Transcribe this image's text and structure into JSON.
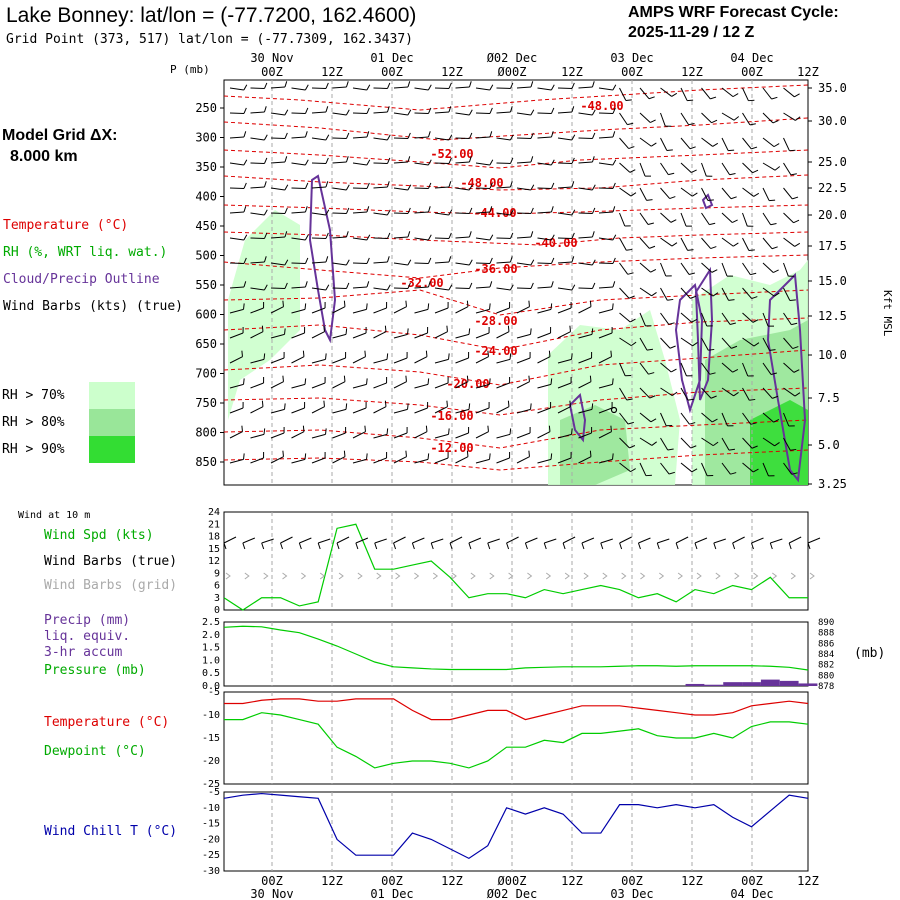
{
  "header": {
    "title": "Lake Bonney:  lat/lon = (-77.7200, 162.4600)",
    "subtitle": "Grid Point (373, 517) lat/lon = (-77.7309, 162.3437)",
    "cycle_line1": "AMPS WRF Forecast Cycle:",
    "cycle_line2": "2025-11-29 / 12  Z"
  },
  "sidebar": {
    "model_grid_label": "Model Grid ΔX:",
    "model_grid_value": "8.000 km",
    "legend_temperature": "Temperature (°C)",
    "legend_rh": "RH (%, WRT liq. wat.)",
    "legend_cloud": "Cloud/Precip Outline",
    "legend_wind": "Wind Barbs (kts) (true)",
    "rh_levels": [
      "RH > 70%",
      "RH > 80%",
      "RH > 90%"
    ],
    "rh_colors": [
      "#ccffcc",
      "#99e699",
      "#33dd33"
    ]
  },
  "colors": {
    "temperature": "#dd0000",
    "dewpoint": "#00cc00",
    "cloud": "#663399",
    "windchill": "#0000aa",
    "grid_barb": "#aaaaaa",
    "precip": "#663399"
  },
  "chart_data": [
    {
      "id": "cross_section",
      "type": "heatmap",
      "axis_title": "P (mb)",
      "right_axis_title": "Kft MSL",
      "pressure_ticks": [
        "250",
        "300",
        "350",
        "400",
        "450",
        "500",
        "550",
        "600",
        "650",
        "700",
        "750",
        "800",
        "850"
      ],
      "height_ticks_kft": [
        "35.0",
        "30.0",
        "25.0",
        "22.5",
        "20.0",
        "17.5",
        "15.0",
        "12.5",
        "10.0",
        "7.5",
        "5.0",
        "3.25"
      ],
      "time_top_dates": [
        "30 Nov",
        "01 Dec",
        "Ø02 Dec",
        "03 Dec",
        "04 Dec"
      ],
      "time_top_hours": [
        "00Z",
        "12Z",
        "00Z",
        "12Z",
        "Ø00Z",
        "12Z",
        "00Z",
        "12Z",
        "00Z",
        "12Z"
      ],
      "isotherm_labels": [
        "-48.00",
        "-52.00",
        "-48.00",
        "-44.00",
        "-40.00",
        "-36.00",
        "-32.00",
        "-28.00",
        "-24.00",
        "-20.00",
        "-16.00",
        "-12.00"
      ]
    },
    {
      "id": "wind_speed",
      "type": "line",
      "label": "Wind at 10 m",
      "legend": [
        "Wind Spd (kts)",
        "Wind Barbs (true)",
        "Wind Barbs (grid)"
      ],
      "yticks": [
        "0",
        "3",
        "6",
        "9",
        "12",
        "15",
        "18",
        "21",
        "24"
      ],
      "ylim": [
        0,
        24
      ],
      "values": [
        3,
        0,
        3,
        3,
        1,
        2,
        20,
        21,
        10,
        10,
        11,
        12,
        8,
        3,
        4,
        4,
        3,
        5,
        4,
        5,
        6,
        5,
        3,
        4,
        2,
        5,
        4,
        6,
        5,
        8,
        3,
        3
      ]
    },
    {
      "id": "precip_pressure",
      "type": "line",
      "legend": [
        "Precip (mm)",
        "liq. equiv.",
        "3-hr accum",
        "Pressure (mb)"
      ],
      "yticks_left": [
        "0.0",
        "0.5",
        "1.0",
        "1.5",
        "2.0",
        "2.5"
      ],
      "yticks_right": [
        "878",
        "880",
        "882",
        "884",
        "886",
        "888",
        "890"
      ],
      "right_unit": "(mb)",
      "ylim_left": [
        0,
        2.5
      ],
      "ylim_right": [
        878,
        890
      ],
      "pressure": [
        889,
        889.2,
        889.1,
        888.5,
        888,
        886.8,
        885.5,
        884,
        882.5,
        881.6,
        881.4,
        881.2,
        881.1,
        881.1,
        881.1,
        881.1,
        881.4,
        881.5,
        881.6,
        881.6,
        881.6,
        881.7,
        881.8,
        881.8,
        881.7,
        881.8,
        881.8,
        881.8,
        881.8,
        881.7,
        881.5,
        881.0
      ],
      "precip": [
        0,
        0,
        0,
        0,
        0,
        0,
        0,
        0,
        0,
        0,
        0,
        0,
        0,
        0,
        0,
        0,
        0,
        0,
        0,
        0,
        0,
        0,
        0,
        0,
        0,
        0.08,
        0.05,
        0.15,
        0.15,
        0.25,
        0.2,
        0.1
      ]
    },
    {
      "id": "temperature",
      "type": "line",
      "legend": [
        "Temperature (°C)",
        "Dewpoint (°C)"
      ],
      "yticks": [
        "-5",
        "-10",
        "-15",
        "-20",
        "-25"
      ],
      "ylim": [
        -25,
        -5
      ],
      "temperature": [
        -7.5,
        -7.5,
        -6.8,
        -6.5,
        -6.5,
        -7,
        -7,
        -6.5,
        -6.5,
        -6.5,
        -9,
        -11,
        -11,
        -10,
        -9,
        -9,
        -11,
        -10,
        -9,
        -8,
        -8,
        -8,
        -8.5,
        -9,
        -9.5,
        -10,
        -10,
        -9.5,
        -8,
        -7.5,
        -7,
        -7.5
      ],
      "dewpoint": [
        -11,
        -11,
        -9.5,
        -10,
        -11,
        -12,
        -17,
        -19,
        -21.5,
        -20.5,
        -20,
        -20,
        -20.5,
        -21.5,
        -20,
        -17,
        -17,
        -15.5,
        -16,
        -14,
        -14,
        -13.5,
        -13,
        -14.5,
        -15,
        -15,
        -14,
        -15,
        -12.5,
        -11.5,
        -11.5,
        -12
      ]
    },
    {
      "id": "wind_chill",
      "type": "line",
      "legend": [
        "Wind Chill T (°C)"
      ],
      "yticks": [
        "-5",
        "-10",
        "-15",
        "-20",
        "-25",
        "-30"
      ],
      "ylim": [
        -30,
        -5
      ],
      "time_bottom_hours": [
        "00Z",
        "12Z",
        "00Z",
        "12Z",
        "Ø00Z",
        "12Z",
        "00Z",
        "12Z",
        "00Z",
        "12Z"
      ],
      "time_bottom_dates": [
        "30 Nov",
        "01 Dec",
        "Ø02 Dec",
        "03 Dec",
        "04 Dec"
      ],
      "values": [
        -7,
        -6,
        -5.5,
        -6,
        -6.5,
        -7,
        -20,
        -25,
        -25,
        -25,
        -18,
        -20,
        -23,
        -26,
        -22,
        -10,
        -12,
        -10,
        -12,
        -18,
        -18,
        -9,
        -9,
        -10,
        -9,
        -10,
        -9,
        -13,
        -16,
        -11,
        -6,
        -7
      ]
    }
  ]
}
